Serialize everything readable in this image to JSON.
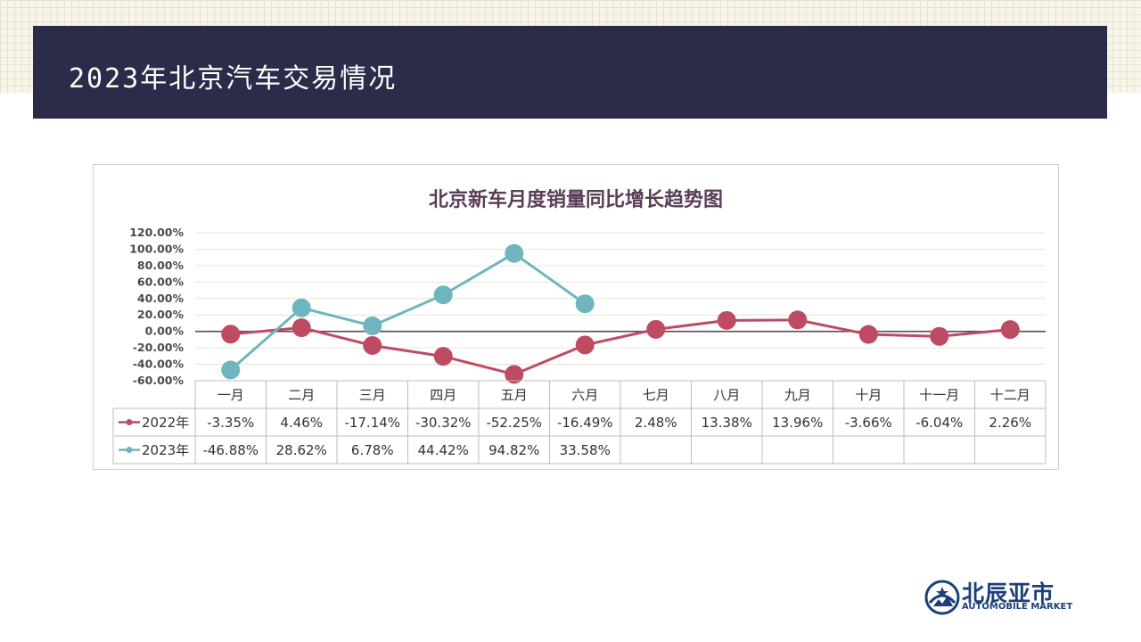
{
  "header": {
    "title": "2023年北京汽车交易情况"
  },
  "logo": {
    "cn": "北辰亚市",
    "en": "AUTOMOBILE MARKET"
  },
  "colors": {
    "series_2022": "#be4b62",
    "series_2023": "#6fb5bd",
    "header_bg": "#2a2c4a",
    "title_text": "#5a3e56"
  },
  "chart_data": {
    "type": "line",
    "title": "北京新车月度销量同比增长趋势图",
    "categories": [
      "一月",
      "二月",
      "三月",
      "四月",
      "五月",
      "六月",
      "七月",
      "八月",
      "九月",
      "十月",
      "十一月",
      "十二月"
    ],
    "ylim": [
      -60,
      120
    ],
    "yticks": [
      "120.00%",
      "100.00%",
      "80.00%",
      "60.00%",
      "40.00%",
      "20.00%",
      "0.00%",
      "-20.00%",
      "-40.00%",
      "-60.00%"
    ],
    "grid": true,
    "legend": "data-table",
    "series": [
      {
        "name": "2022年",
        "values": [
          -3.35,
          4.46,
          -17.14,
          -30.32,
          -52.25,
          -16.49,
          2.48,
          13.38,
          13.96,
          -3.66,
          -6.04,
          2.26
        ],
        "labels": [
          "-3.35%",
          "4.46%",
          "-17.14%",
          "-30.32%",
          "-52.25%",
          "-16.49%",
          "2.48%",
          "13.38%",
          "13.96%",
          "-3.66%",
          "-6.04%",
          "2.26%"
        ]
      },
      {
        "name": "2023年",
        "values": [
          -46.88,
          28.62,
          6.78,
          44.42,
          94.82,
          33.58,
          null,
          null,
          null,
          null,
          null,
          null
        ],
        "labels": [
          "-46.88%",
          "28.62%",
          "6.78%",
          "44.42%",
          "94.82%",
          "33.58%",
          "",
          "",
          "",
          "",
          "",
          ""
        ]
      }
    ]
  }
}
